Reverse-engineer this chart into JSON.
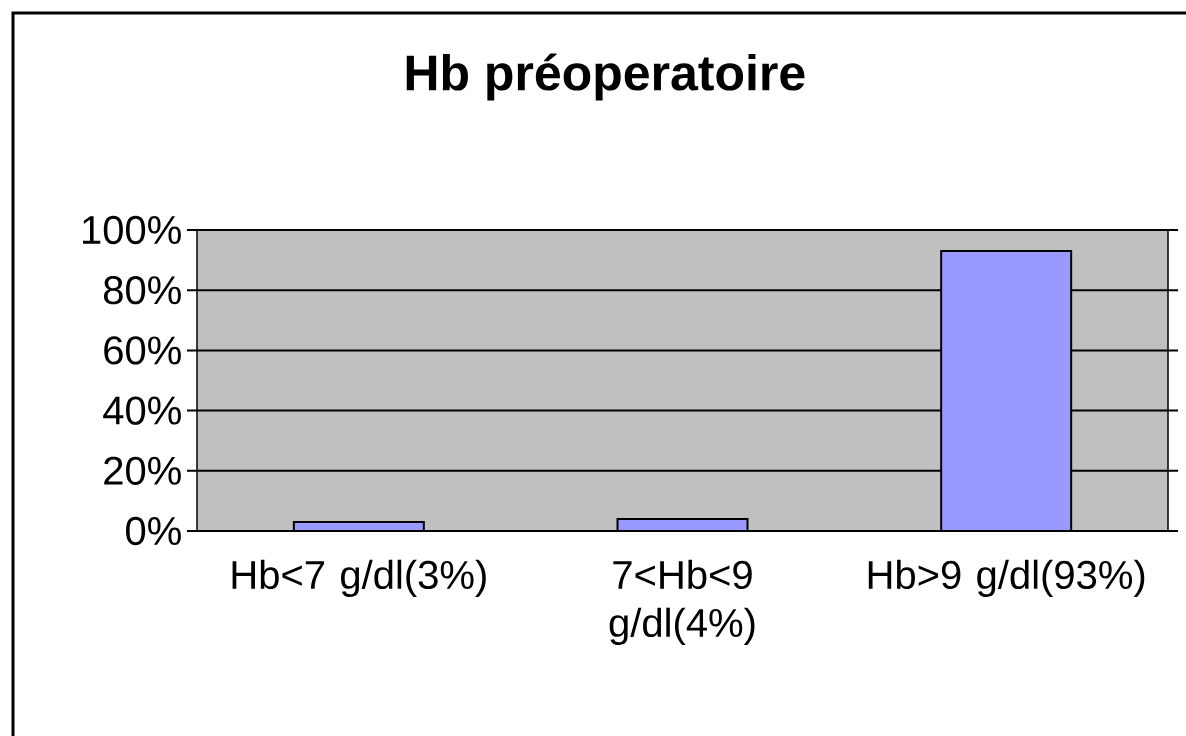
{
  "chart_data": {
    "type": "bar",
    "title": "Hb préoperatoire",
    "categories": [
      "Hb<7 g/dl(3%)",
      "7<Hb<9 g/dl(4%)",
      "Hb>9 g/dl(93%)"
    ],
    "values": [
      3,
      4,
      93
    ],
    "color": "#9999ff",
    "ylim": [
      0,
      100
    ],
    "yticks": [
      {
        "value": 0,
        "label": "0%"
      },
      {
        "value": 20,
        "label": "20%"
      },
      {
        "value": 40,
        "label": "40%"
      },
      {
        "value": 60,
        "label": "60%"
      },
      {
        "value": 80,
        "label": "80%"
      },
      {
        "value": 100,
        "label": "100%"
      }
    ],
    "grid": "y"
  }
}
